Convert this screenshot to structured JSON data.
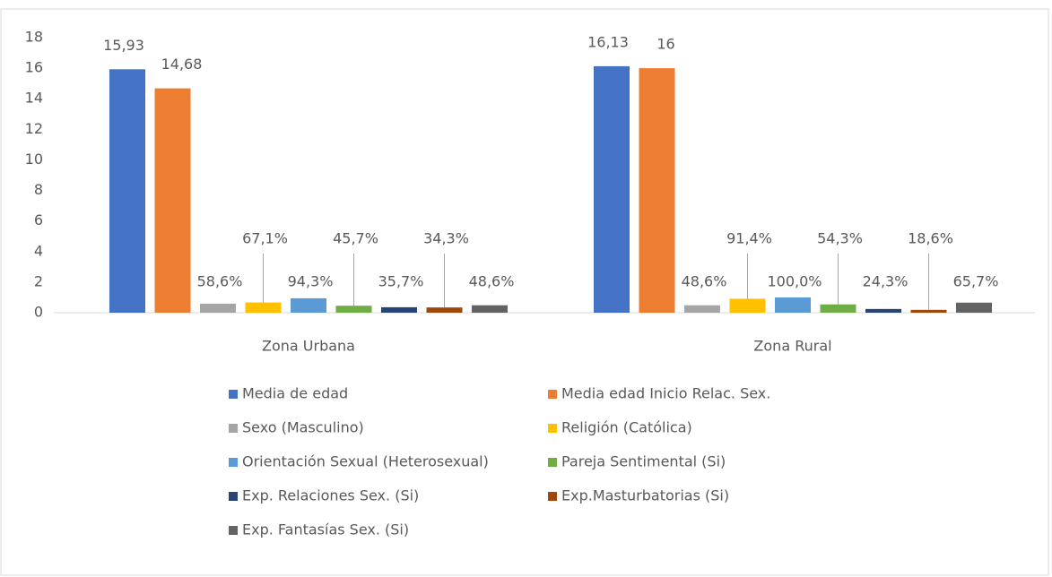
{
  "chart_data": {
    "type": "bar",
    "categories": [
      "Zona Urbana",
      "Zona Rural"
    ],
    "series": [
      {
        "name": "Media de edad",
        "color": "#4472c4",
        "values": [
          15.93,
          16.13
        ],
        "value_labels": [
          "15,93",
          "16,13"
        ]
      },
      {
        "name": "Media edad Inicio Relac. Sex.",
        "color": "#ed7d31",
        "values": [
          14.68,
          16
        ],
        "value_labels": [
          "14,68",
          "16"
        ]
      },
      {
        "name": "Sexo (Masculino)",
        "color": "#a5a5a5",
        "values": [
          0.586,
          0.486
        ],
        "value_labels": [
          "58,6%",
          "48,6%"
        ]
      },
      {
        "name": "Religión (Católica)",
        "color": "#ffc000",
        "values": [
          0.671,
          0.914
        ],
        "value_labels": [
          "67,1%",
          "91,4%"
        ]
      },
      {
        "name": "Orientación Sexual (Heterosexual)",
        "color": "#5b9bd5",
        "values": [
          0.943,
          1.0
        ],
        "value_labels": [
          "94,3%",
          "100,0%"
        ]
      },
      {
        "name": "Pareja Sentimental (Si)",
        "color": "#70ad47",
        "values": [
          0.457,
          0.543
        ],
        "value_labels": [
          "45,7%",
          "54,3%"
        ]
      },
      {
        "name": "Exp. Relaciones Sex. (Si)",
        "color": "#264478",
        "values": [
          0.357,
          0.243
        ],
        "value_labels": [
          "35,7%",
          "24,3%"
        ]
      },
      {
        "name": "Exp.Masturbatorias (Si)",
        "color": "#9e480e",
        "values": [
          0.343,
          0.186
        ],
        "value_labels": [
          "34,3%",
          "18,6%"
        ]
      },
      {
        "name": "Exp. Fantasías Sex. (Si)",
        "color": "#636363",
        "values": [
          0.486,
          0.657
        ],
        "value_labels": [
          "48,6%",
          "65,7%"
        ]
      }
    ],
    "ylim": [
      0,
      18
    ],
    "yticks": [
      0,
      2,
      4,
      6,
      8,
      10,
      12,
      14,
      16,
      18
    ],
    "grid": false
  }
}
